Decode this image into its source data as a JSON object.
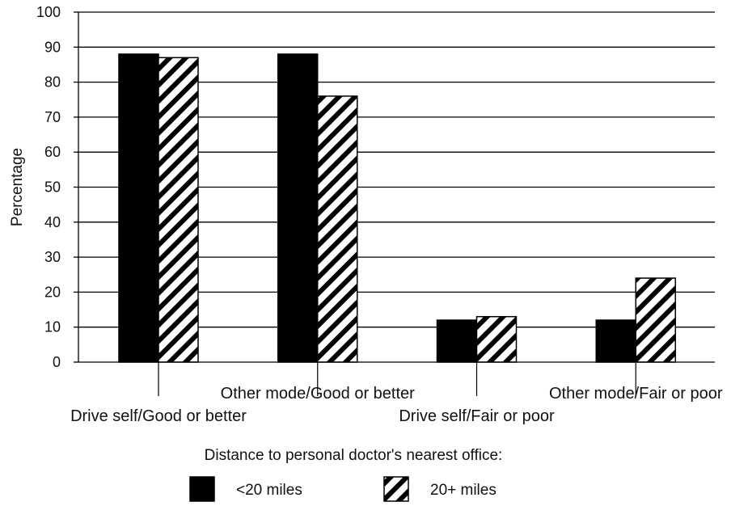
{
  "chart_data": {
    "type": "bar",
    "title": "",
    "xlabel": "",
    "ylabel": "Percentage",
    "ylim": [
      0,
      100
    ],
    "yticks": [
      0,
      10,
      20,
      30,
      40,
      50,
      60,
      70,
      80,
      90,
      100
    ],
    "grid": true,
    "categories": [
      "Drive self/Good or better",
      "Other mode/Good or better",
      "Drive self/Fair or poor",
      "Other mode/Fair or poor"
    ],
    "series": [
      {
        "name": "<20 miles",
        "values": [
          88,
          88,
          12,
          12
        ],
        "fill": "solid",
        "color": "#000000"
      },
      {
        "name": "20+ miles",
        "values": [
          87,
          76,
          13,
          24
        ],
        "fill": "hatched",
        "color": "#000000"
      }
    ],
    "legend": {
      "title": "Distance to personal doctor's nearest office:",
      "placement": "bottom"
    }
  }
}
